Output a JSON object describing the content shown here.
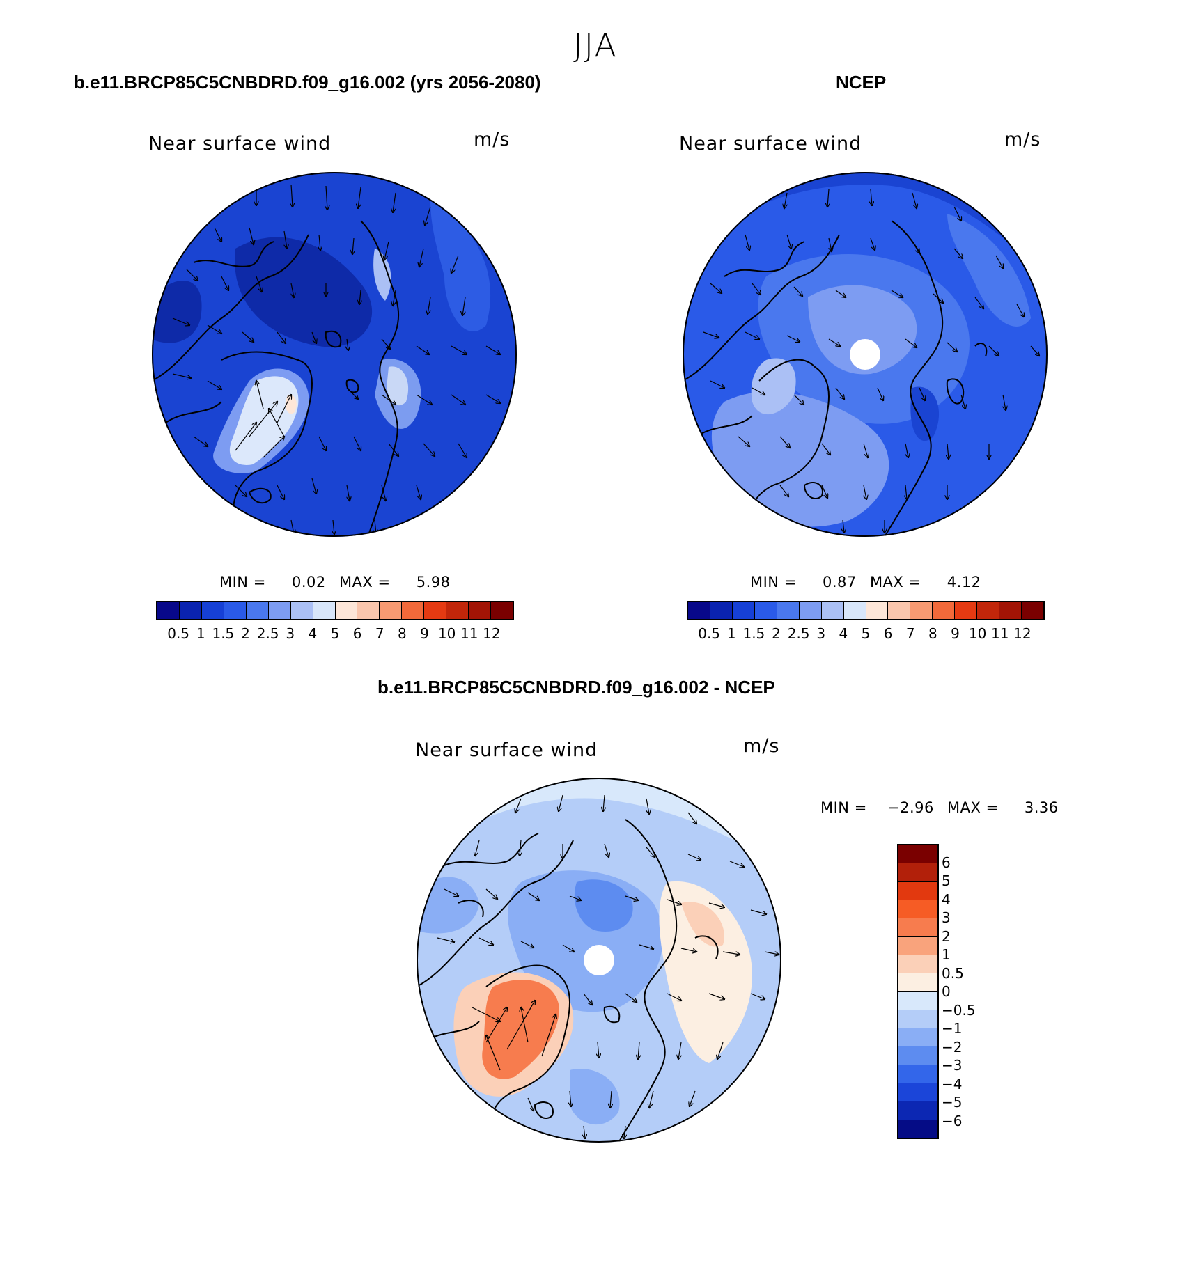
{
  "season": "JJA",
  "panels": {
    "model": {
      "case_title": "b.e11.BRCP85C5CNBDRD.f09_g16.002 (yrs 2056-2080)",
      "plot_title": "Near surface wind",
      "units": "m/s",
      "min_label": "MIN =",
      "min_value": "0.02",
      "max_label": "MAX =",
      "max_value": "5.98"
    },
    "obs": {
      "case_title": "NCEP",
      "plot_title": "Near surface wind",
      "units": "m/s",
      "min_label": "MIN =",
      "min_value": "0.87",
      "max_label": "MAX =",
      "max_value": "4.12"
    },
    "diff": {
      "case_title": "b.e11.BRCP85C5CNBDRD.f09_g16.002 - NCEP",
      "plot_title": "Near surface wind",
      "units": "m/s",
      "min_label": "MIN =",
      "min_value": "−2.96",
      "max_label": "MAX =",
      "max_value": "3.36"
    }
  },
  "colorbar_abs": {
    "labels": [
      "0.5",
      "1",
      "1.5",
      "2",
      "2.5",
      "3",
      "4",
      "5",
      "6",
      "7",
      "8",
      "9",
      "10",
      "11",
      "12"
    ],
    "colors": [
      "#08088a",
      "#0a23b0",
      "#1640d6",
      "#2a5ae8",
      "#4a78ee",
      "#7d9cf2",
      "#abc0f5",
      "#d8e6fa",
      "#fde6d8",
      "#fac6ad",
      "#f79a72",
      "#f2693a",
      "#e53a12",
      "#c2260a",
      "#a21405",
      "#7a0000"
    ]
  },
  "colorbar_diff": {
    "labels": [
      "6",
      "5",
      "4",
      "3",
      "2",
      "1",
      "0.5",
      "0",
      "−0.5",
      "−1",
      "−2",
      "−3",
      "−4",
      "−5",
      "−6"
    ],
    "colors": [
      "#7a0000",
      "#b2200a",
      "#e2390f",
      "#f65c25",
      "#f77c4e",
      "#f9a37c",
      "#fbd0b8",
      "#fcefe2",
      "#d8e8fb",
      "#b4cdf8",
      "#8aaef5",
      "#5d8cf0",
      "#3366ea",
      "#1b45d9",
      "#0c27b3",
      "#050c86"
    ]
  }
}
